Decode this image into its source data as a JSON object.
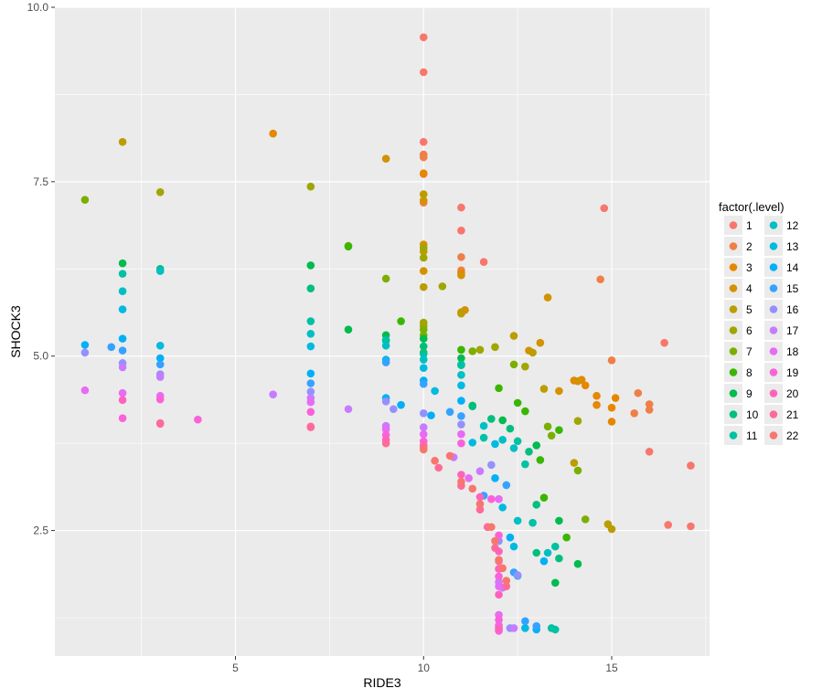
{
  "chart_data": {
    "type": "scatter",
    "title": "",
    "xlabel": "RIDE3",
    "ylabel": "SHOCK3",
    "xlim": [
      0.2,
      17.6
    ],
    "ylim": [
      0.7,
      10.0
    ],
    "x_ticks": [
      5,
      10,
      15
    ],
    "x_tick_labels": [
      "5",
      "10",
      "15"
    ],
    "y_ticks": [
      2.5,
      5.0,
      7.5,
      10.0
    ],
    "y_tick_labels": [
      "2.5",
      "5.0",
      "7.5",
      "10.0"
    ],
    "grid": true,
    "legend": {
      "title": "factor(.level)",
      "placement": "right",
      "columns": 2
    },
    "series": [
      {
        "name": "1",
        "color": "#F8766D",
        "points": [
          [
            10.0,
            9.57
          ],
          [
            10.0,
            9.07
          ],
          [
            10.0,
            8.07
          ],
          [
            11.0,
            7.13
          ],
          [
            11.0,
            6.8
          ],
          [
            11.6,
            6.35
          ],
          [
            14.8,
            7.12
          ],
          [
            16.4,
            5.19
          ],
          [
            17.1,
            3.43
          ],
          [
            16.5,
            2.58
          ],
          [
            17.1,
            2.56
          ],
          [
            16.0,
            3.63
          ]
        ]
      },
      {
        "name": "2",
        "color": "#EF7F49",
        "points": [
          [
            10.0,
            7.89
          ],
          [
            10.0,
            7.85
          ],
          [
            10.0,
            7.61
          ],
          [
            10.0,
            7.2
          ],
          [
            11.0,
            6.42
          ],
          [
            11.0,
            6.23
          ],
          [
            14.7,
            6.1
          ],
          [
            15.0,
            4.94
          ],
          [
            15.7,
            4.47
          ],
          [
            16.0,
            4.31
          ],
          [
            16.0,
            4.23
          ],
          [
            15.6,
            4.18
          ]
        ]
      },
      {
        "name": "3",
        "color": "#E58700",
        "points": [
          [
            6.0,
            8.19
          ],
          [
            10.0,
            7.62
          ],
          [
            11.0,
            6.19
          ],
          [
            11.0,
            5.63
          ],
          [
            14.0,
            4.65
          ],
          [
            14.2,
            4.66
          ],
          [
            14.3,
            4.58
          ],
          [
            14.6,
            4.43
          ],
          [
            15.1,
            4.4
          ],
          [
            15.0,
            4.26
          ],
          [
            14.6,
            4.3
          ],
          [
            15.0,
            4.06
          ]
        ]
      },
      {
        "name": "4",
        "color": "#D39200",
        "points": [
          [
            9.0,
            7.83
          ],
          [
            10.0,
            7.23
          ],
          [
            10.0,
            6.6
          ],
          [
            10.0,
            6.22
          ],
          [
            11.0,
            6.16
          ],
          [
            11.1,
            5.66
          ],
          [
            13.3,
            5.84
          ],
          [
            13.1,
            5.19
          ],
          [
            12.8,
            5.08
          ],
          [
            14.1,
            4.64
          ],
          [
            13.6,
            4.5
          ]
        ]
      },
      {
        "name": "5",
        "color": "#BB9D00",
        "points": [
          [
            2.0,
            8.07
          ],
          [
            10.0,
            7.32
          ],
          [
            10.0,
            6.5
          ],
          [
            10.0,
            5.99
          ],
          [
            11.0,
            5.61
          ],
          [
            12.4,
            5.29
          ],
          [
            12.9,
            5.05
          ],
          [
            13.2,
            4.53
          ],
          [
            14.0,
            3.47
          ],
          [
            14.9,
            2.59
          ],
          [
            15.0,
            2.52
          ]
        ]
      },
      {
        "name": "6",
        "color": "#A0A600",
        "points": [
          [
            3.0,
            7.35
          ],
          [
            7.0,
            7.43
          ],
          [
            10.0,
            6.55
          ],
          [
            10.0,
            6.41
          ],
          [
            10.0,
            5.48
          ],
          [
            10.0,
            5.43
          ],
          [
            10.5,
            6.0
          ],
          [
            11.5,
            5.09
          ],
          [
            11.9,
            5.13
          ],
          [
            12.7,
            4.85
          ],
          [
            14.1,
            4.07
          ]
        ]
      },
      {
        "name": "7",
        "color": "#7CAE00",
        "points": [
          [
            1.0,
            7.24
          ],
          [
            8.0,
            6.58
          ],
          [
            9.0,
            6.11
          ],
          [
            10.0,
            5.38
          ],
          [
            10.0,
            5.3
          ],
          [
            11.3,
            5.07
          ],
          [
            12.4,
            4.88
          ],
          [
            13.3,
            3.99
          ],
          [
            13.4,
            3.86
          ],
          [
            14.3,
            2.66
          ],
          [
            14.1,
            3.36
          ]
        ]
      },
      {
        "name": "8",
        "color": "#39B600",
        "points": [
          [
            8.0,
            6.57
          ],
          [
            9.4,
            5.5
          ],
          [
            10.0,
            5.05
          ],
          [
            11.0,
            5.09
          ],
          [
            12.0,
            4.54
          ],
          [
            12.5,
            4.33
          ],
          [
            12.7,
            4.21
          ],
          [
            13.6,
            3.94
          ],
          [
            13.1,
            3.51
          ],
          [
            13.2,
            2.97
          ],
          [
            13.8,
            2.4
          ]
        ]
      },
      {
        "name": "9",
        "color": "#00BB4E",
        "points": [
          [
            2.0,
            6.33
          ],
          [
            7.0,
            6.3
          ],
          [
            8.0,
            5.38
          ],
          [
            9.0,
            5.3
          ],
          [
            10.0,
            5.25
          ],
          [
            11.0,
            4.97
          ],
          [
            11.3,
            4.29
          ],
          [
            12.1,
            4.08
          ],
          [
            13.0,
            3.72
          ],
          [
            13.6,
            2.64
          ],
          [
            14.1,
            2.02
          ],
          [
            13.5,
            1.75
          ]
        ]
      },
      {
        "name": "10",
        "color": "#00BF7D",
        "points": [
          [
            3.0,
            6.25
          ],
          [
            7.0,
            5.97
          ],
          [
            9.0,
            5.22
          ],
          [
            10.0,
            5.14
          ],
          [
            11.0,
            4.87
          ],
          [
            11.3,
            4.28
          ],
          [
            11.8,
            4.1
          ],
          [
            12.3,
            3.96
          ],
          [
            12.8,
            3.63
          ],
          [
            13.0,
            2.87
          ],
          [
            13.6,
            2.1
          ],
          [
            13.0,
            2.18
          ]
        ]
      },
      {
        "name": "11",
        "color": "#00C1A3",
        "points": [
          [
            2.0,
            6.18
          ],
          [
            7.0,
            5.5
          ],
          [
            9.0,
            5.23
          ],
          [
            10.0,
            5.03
          ],
          [
            11.0,
            4.88
          ],
          [
            11.6,
            3.83
          ],
          [
            12.5,
            3.78
          ],
          [
            12.7,
            3.45
          ],
          [
            12.9,
            2.61
          ],
          [
            13.5,
            2.27
          ],
          [
            13.4,
            1.1
          ],
          [
            13.5,
            1.08
          ]
        ]
      },
      {
        "name": "12",
        "color": "#00BFC4",
        "points": [
          [
            2.0,
            5.93
          ],
          [
            3.0,
            6.22
          ],
          [
            7.0,
            5.32
          ],
          [
            9.0,
            5.15
          ],
          [
            10.0,
            4.95
          ],
          [
            11.0,
            4.73
          ],
          [
            11.6,
            4.0
          ],
          [
            12.1,
            3.8
          ],
          [
            12.4,
            3.68
          ],
          [
            12.5,
            2.64
          ],
          [
            13.3,
            2.18
          ],
          [
            12.5,
            1.85
          ]
        ]
      },
      {
        "name": "13",
        "color": "#00BAE0",
        "points": [
          [
            2.0,
            5.67
          ],
          [
            3.0,
            5.15
          ],
          [
            7.0,
            5.14
          ],
          [
            9.0,
            4.95
          ],
          [
            10.0,
            4.83
          ],
          [
            10.3,
            4.5
          ],
          [
            11.0,
            4.58
          ],
          [
            11.3,
            3.76
          ],
          [
            11.9,
            3.74
          ],
          [
            12.1,
            2.83
          ],
          [
            12.4,
            2.27
          ],
          [
            12.7,
            1.1
          ]
        ]
      },
      {
        "name": "14",
        "color": "#00B0F6",
        "points": [
          [
            1.0,
            5.16
          ],
          [
            2.0,
            5.25
          ],
          [
            3.0,
            4.97
          ],
          [
            7.0,
            4.75
          ],
          [
            9.0,
            4.4
          ],
          [
            9.4,
            4.3
          ],
          [
            10.0,
            4.65
          ],
          [
            10.2,
            4.15
          ],
          [
            11.0,
            4.36
          ],
          [
            11.9,
            3.25
          ],
          [
            12.3,
            2.4
          ],
          [
            13.2,
            2.06
          ],
          [
            13.0,
            1.08
          ]
        ]
      },
      {
        "name": "15",
        "color": "#35A2FF",
        "points": [
          [
            1.7,
            5.13
          ],
          [
            2.0,
            5.08
          ],
          [
            3.0,
            4.88
          ],
          [
            7.0,
            4.61
          ],
          [
            9.0,
            4.91
          ],
          [
            10.0,
            4.6
          ],
          [
            10.7,
            4.2
          ],
          [
            11.0,
            4.14
          ],
          [
            11.6,
            3.0
          ],
          [
            12.2,
            3.15
          ],
          [
            12.4,
            1.9
          ],
          [
            13.0,
            1.13
          ],
          [
            12.7,
            1.2
          ]
        ]
      },
      {
        "name": "16",
        "color": "#9590FF",
        "points": [
          [
            1.0,
            5.05
          ],
          [
            2.0,
            4.9
          ],
          [
            3.0,
            4.74
          ],
          [
            7.0,
            4.49
          ],
          [
            9.0,
            4.35
          ],
          [
            9.2,
            4.24
          ],
          [
            10.0,
            4.18
          ],
          [
            11.0,
            4.02
          ],
          [
            11.8,
            3.44
          ],
          [
            12.0,
            2.35
          ],
          [
            12.5,
            1.86
          ],
          [
            12.3,
            1.1
          ]
        ]
      },
      {
        "name": "17",
        "color": "#C77CFF",
        "points": [
          [
            2.0,
            4.84
          ],
          [
            3.0,
            4.7
          ],
          [
            6.0,
            4.45
          ],
          [
            7.0,
            4.4
          ],
          [
            8.0,
            4.24
          ],
          [
            9.0,
            4.0
          ],
          [
            10.0,
            3.98
          ],
          [
            10.8,
            3.55
          ],
          [
            11.5,
            3.35
          ],
          [
            12.0,
            1.76
          ],
          [
            12.1,
            1.68
          ],
          [
            12.4,
            1.1
          ],
          [
            12.0,
            1.08
          ]
        ]
      },
      {
        "name": "18",
        "color": "#E76BF3",
        "points": [
          [
            1.0,
            4.51
          ],
          [
            2.0,
            4.47
          ],
          [
            3.0,
            4.43
          ],
          [
            7.0,
            4.34
          ],
          [
            9.0,
            3.95
          ],
          [
            10.0,
            3.88
          ],
          [
            11.0,
            3.88
          ],
          [
            11.2,
            3.25
          ],
          [
            12.0,
            2.95
          ],
          [
            12.0,
            1.7
          ],
          [
            12.0,
            1.29
          ],
          [
            12.0,
            1.14
          ]
        ]
      },
      {
        "name": "19",
        "color": "#FA62DB",
        "points": [
          [
            2.0,
            4.11
          ],
          [
            3.0,
            4.38
          ],
          [
            4.0,
            4.09
          ],
          [
            7.0,
            4.2
          ],
          [
            9.0,
            3.87
          ],
          [
            10.0,
            3.78
          ],
          [
            11.0,
            3.75
          ],
          [
            11.8,
            2.95
          ],
          [
            12.0,
            2.43
          ],
          [
            12.0,
            1.84
          ],
          [
            12.0,
            1.22
          ],
          [
            12.0,
            1.06
          ]
        ]
      },
      {
        "name": "20",
        "color": "#FF62BC",
        "points": [
          [
            2.0,
            4.37
          ],
          [
            3.0,
            4.04
          ],
          [
            7.0,
            3.98
          ],
          [
            9.0,
            3.8
          ],
          [
            10.0,
            3.72
          ],
          [
            11.0,
            3.3
          ],
          [
            11.5,
            2.98
          ],
          [
            11.7,
            2.55
          ],
          [
            12.0,
            2.2
          ],
          [
            12.0,
            1.95
          ],
          [
            12.0,
            1.58
          ],
          [
            12.0,
            1.1
          ]
        ]
      },
      {
        "name": "21",
        "color": "#FF6A98",
        "points": [
          [
            3.0,
            4.03
          ],
          [
            7.0,
            3.99
          ],
          [
            9.0,
            3.75
          ],
          [
            10.0,
            3.7
          ],
          [
            10.4,
            3.4
          ],
          [
            11.0,
            3.14
          ],
          [
            11.5,
            2.8
          ],
          [
            11.7,
            2.55
          ],
          [
            11.9,
            2.25
          ],
          [
            12.0,
            2.06
          ],
          [
            12.2,
            1.7
          ]
        ]
      },
      {
        "name": "22",
        "color": "#F8766D",
        "points": [
          [
            10.0,
            3.66
          ],
          [
            10.3,
            3.5
          ],
          [
            10.7,
            3.57
          ],
          [
            11.0,
            3.2
          ],
          [
            11.3,
            3.1
          ],
          [
            11.5,
            2.88
          ],
          [
            11.8,
            2.55
          ],
          [
            11.9,
            2.35
          ],
          [
            12.0,
            2.08
          ],
          [
            12.1,
            1.96
          ],
          [
            12.2,
            1.78
          ]
        ]
      }
    ]
  }
}
